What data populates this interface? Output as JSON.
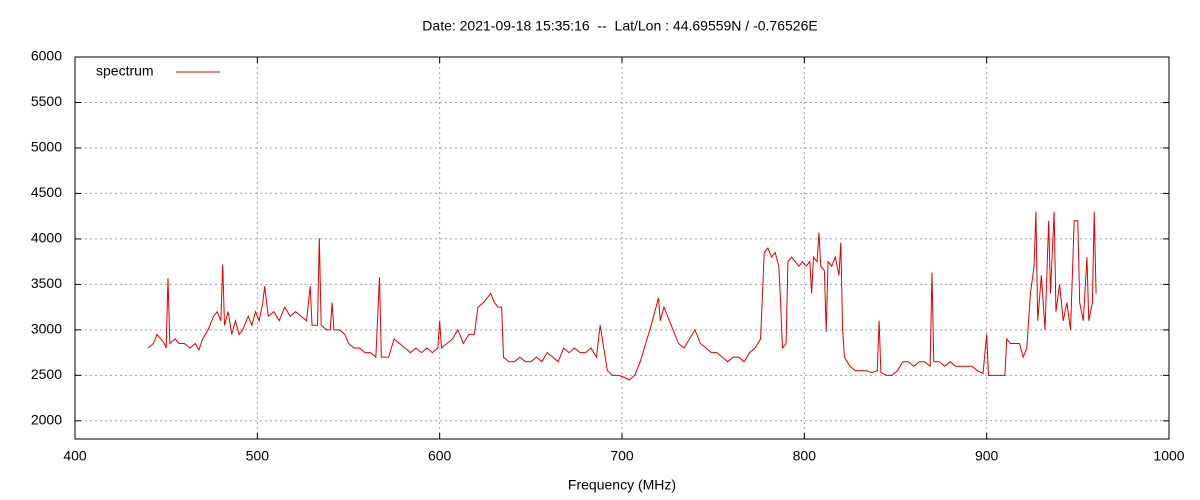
{
  "chart_data": {
    "type": "line",
    "title": "Date: 2021-09-18 15:35:16  --  Lat/Lon : 44.69559N / -0.76526E",
    "x_label": "Frequency (MHz)",
    "xlim": [
      400,
      1000
    ],
    "xticks": [
      400,
      500,
      600,
      700,
      800,
      900,
      1000
    ],
    "ylim": [
      1800,
      6000
    ],
    "yticks": [
      2000,
      2500,
      3000,
      3500,
      4000,
      4500,
      5000,
      5500,
      6000
    ],
    "grid": true,
    "legend": "top-left",
    "x": [
      440,
      443,
      445,
      447,
      449,
      450,
      451,
      452,
      455,
      457,
      460,
      463,
      466,
      468,
      470,
      473,
      476,
      478,
      480,
      481,
      482,
      484,
      486,
      488,
      490,
      492,
      495,
      497,
      499,
      501,
      503,
      504,
      506,
      509,
      512,
      515,
      518,
      521,
      524,
      527,
      529,
      530,
      533,
      534,
      535,
      538,
      540,
      541,
      542,
      545,
      548,
      550,
      553,
      556,
      559,
      562,
      565,
      567,
      568,
      572,
      575,
      578,
      581,
      584,
      587,
      590,
      593,
      596,
      599,
      600,
      601,
      604,
      607,
      610,
      613,
      616,
      619,
      621,
      624,
      626,
      628,
      630,
      632,
      634,
      635,
      638,
      641,
      644,
      647,
      650,
      653,
      656,
      659,
      662,
      665,
      668,
      671,
      674,
      677,
      680,
      683,
      686,
      688,
      690,
      692,
      695,
      698,
      701,
      704,
      707,
      710,
      713,
      716,
      718,
      720,
      721,
      723,
      725,
      728,
      731,
      734,
      737,
      740,
      743,
      746,
      749,
      752,
      755,
      758,
      761,
      764,
      767,
      770,
      773,
      776,
      778,
      780,
      782,
      784,
      786,
      787,
      788,
      790,
      791,
      793,
      795,
      797,
      799,
      801,
      803,
      804,
      805,
      807,
      808,
      809,
      811,
      812,
      813,
      815,
      817,
      819,
      820,
      821,
      822,
      825,
      828,
      831,
      834,
      837,
      840,
      841,
      842,
      845,
      848,
      851,
      854,
      857,
      860,
      863,
      866,
      869,
      870,
      871,
      874,
      877,
      880,
      883,
      886,
      889,
      892,
      895,
      898,
      900,
      901,
      904,
      907,
      910,
      911,
      913,
      916,
      918,
      920,
      922,
      924,
      926,
      927,
      928,
      930,
      932,
      934,
      935,
      937,
      938,
      940,
      942,
      944,
      946,
      948,
      950,
      951,
      953,
      955,
      956,
      958,
      959,
      960
    ],
    "series": [
      {
        "name": "spectrum",
        "color": "#e00000",
        "values": [
          2800,
          2850,
          2950,
          2900,
          2850,
          2800,
          3570,
          2850,
          2900,
          2850,
          2850,
          2800,
          2850,
          2780,
          2900,
          3000,
          3150,
          3200,
          3100,
          3720,
          3050,
          3200,
          2950,
          3100,
          2950,
          3000,
          3150,
          3050,
          3200,
          3100,
          3300,
          3480,
          3150,
          3200,
          3100,
          3250,
          3150,
          3200,
          3150,
          3100,
          3480,
          3050,
          3050,
          4010,
          3050,
          3000,
          3000,
          3300,
          3000,
          3000,
          2950,
          2850,
          2800,
          2800,
          2750,
          2750,
          2700,
          3580,
          2700,
          2700,
          2900,
          2850,
          2800,
          2750,
          2800,
          2750,
          2800,
          2750,
          2800,
          3100,
          2800,
          2850,
          2900,
          3000,
          2850,
          2950,
          2950,
          3250,
          3300,
          3350,
          3400,
          3300,
          3250,
          3250,
          2700,
          2650,
          2650,
          2700,
          2650,
          2650,
          2700,
          2650,
          2750,
          2700,
          2650,
          2800,
          2750,
          2800,
          2750,
          2750,
          2800,
          2700,
          3050,
          2800,
          2550,
          2500,
          2500,
          2480,
          2450,
          2500,
          2650,
          2850,
          3050,
          3200,
          3350,
          3100,
          3250,
          3150,
          3000,
          2850,
          2800,
          2900,
          3000,
          2850,
          2800,
          2750,
          2750,
          2700,
          2650,
          2700,
          2700,
          2650,
          2750,
          2800,
          2900,
          3850,
          3900,
          3800,
          3850,
          3700,
          3300,
          2800,
          2850,
          3750,
          3800,
          3750,
          3700,
          3750,
          3700,
          3750,
          3400,
          3800,
          3750,
          4070,
          3700,
          3650,
          2980,
          3750,
          3700,
          3800,
          3600,
          3960,
          3000,
          2700,
          2600,
          2550,
          2550,
          2550,
          2530,
          2550,
          3100,
          2530,
          2500,
          2500,
          2550,
          2650,
          2650,
          2600,
          2650,
          2650,
          2600,
          3630,
          2650,
          2650,
          2600,
          2650,
          2600,
          2600,
          2600,
          2600,
          2550,
          2520,
          2950,
          2500,
          2500,
          2500,
          2500,
          2900,
          2850,
          2850,
          2850,
          2700,
          2800,
          3400,
          3700,
          4300,
          3100,
          3600,
          3000,
          4200,
          3400,
          4300,
          3200,
          3500,
          3100,
          3300,
          3000,
          4200,
          4200,
          3300,
          3100,
          3800,
          3100,
          3300,
          4300,
          3400
        ]
      }
    ]
  }
}
